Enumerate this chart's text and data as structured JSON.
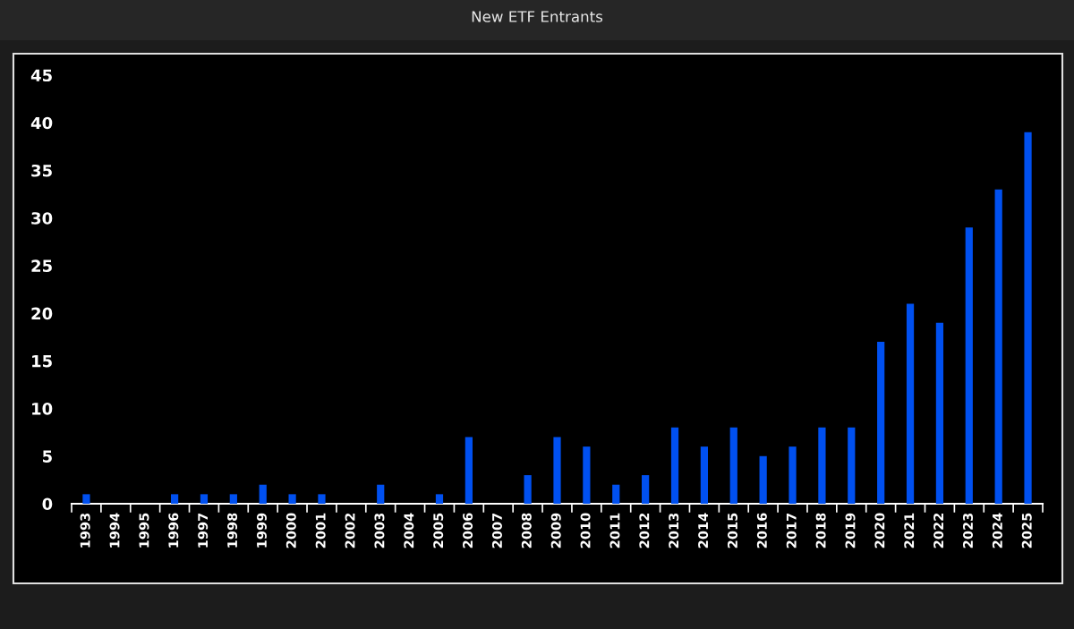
{
  "chart_data": {
    "type": "bar",
    "title": "New ETF Entrants",
    "categories": [
      "1993",
      "1994",
      "1995",
      "1996",
      "1997",
      "1998",
      "1999",
      "2000",
      "2001",
      "2002",
      "2003",
      "2004",
      "2005",
      "2006",
      "2007",
      "2008",
      "2009",
      "2010",
      "2011",
      "2012",
      "2013",
      "2014",
      "2015",
      "2016",
      "2017",
      "2018",
      "2019",
      "2020",
      "2021",
      "2022",
      "2023",
      "2024",
      "2025"
    ],
    "values": [
      1,
      0,
      0,
      1,
      1,
      1,
      2,
      1,
      1,
      0,
      2,
      0,
      1,
      7,
      0,
      3,
      7,
      6,
      2,
      3,
      8,
      6,
      8,
      5,
      6,
      8,
      8,
      17,
      21,
      19,
      29,
      33,
      39
    ],
    "color": "#0050f0",
    "ylim": [
      0,
      45
    ],
    "yticks": [
      0,
      5,
      10,
      15,
      20,
      25,
      30,
      35,
      40,
      45
    ]
  }
}
